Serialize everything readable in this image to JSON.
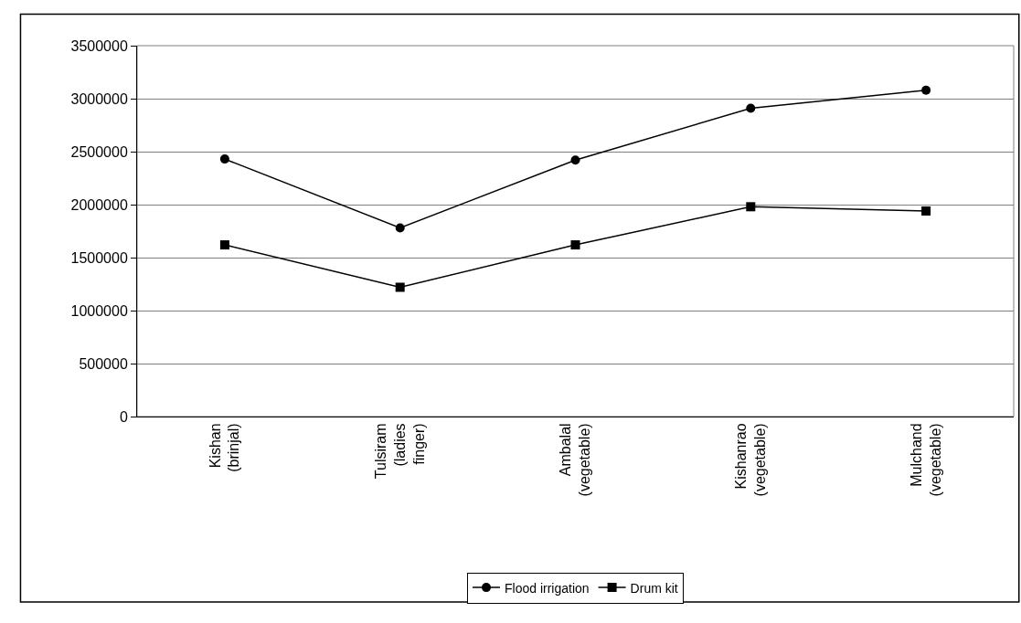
{
  "chart_data": {
    "type": "line",
    "categories": [
      "Kishan (brinjal)",
      "Tulsiram (ladies finger)",
      "Ambalal (vegetable)",
      "Kishanrao (vegetable)",
      "Mulchand (vegetable)"
    ],
    "series": [
      {
        "name": "Flood irrigation",
        "color": "#000000",
        "marker": "circle",
        "values": [
          2430000,
          1780000,
          2420000,
          2910000,
          3080000
        ]
      },
      {
        "name": "Drum kit",
        "color": "#000000",
        "marker": "square",
        "values": [
          1620000,
          1220000,
          1620000,
          1980000,
          1940000
        ]
      }
    ],
    "ylim": [
      0,
      3500000
    ],
    "yticks": [
      0,
      500000,
      1000000,
      1500000,
      2000000,
      2500000,
      3000000,
      3500000
    ],
    "grid": "y",
    "legend": "bottom",
    "line_style": "solid"
  }
}
